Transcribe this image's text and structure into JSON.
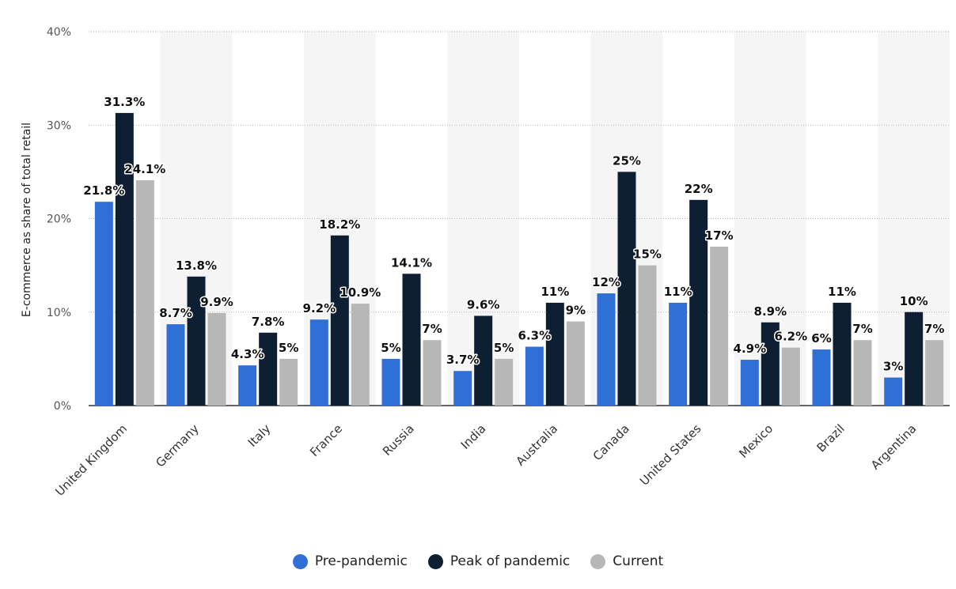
{
  "chart_data": {
    "type": "bar",
    "ylabel": "E-commerce as share of total retail",
    "ylim": [
      0,
      40
    ],
    "yticks": [
      "0%",
      "10%",
      "20%",
      "30%",
      "40%"
    ],
    "grid": true,
    "legend_position": "bottom",
    "categories": [
      "United Kingdom",
      "Germany",
      "Italy",
      "France",
      "Russia",
      "India",
      "Australia",
      "Canada",
      "United States",
      "Mexico",
      "Brazil",
      "Argentina"
    ],
    "series": [
      {
        "name": "Pre-pandemic",
        "color": "#2f6fd6",
        "values": [
          21.8,
          8.7,
          4.3,
          9.2,
          5,
          3.7,
          6.3,
          12,
          11,
          4.9,
          6,
          3
        ],
        "labels": [
          "21.8%",
          "8.7%",
          "4.3%",
          "9.2%",
          "5%",
          "3.7%",
          "6.3%",
          "12%",
          "11%",
          "4.9%",
          "6%",
          "3%"
        ]
      },
      {
        "name": "Peak of pandemic",
        "color": "#0e1f33",
        "values": [
          31.3,
          13.8,
          7.8,
          18.2,
          14.1,
          9.6,
          11,
          25,
          22,
          8.9,
          11,
          10
        ],
        "labels": [
          "31.3%",
          "13.8%",
          "7.8%",
          "18.2%",
          "14.1%",
          "9.6%",
          "11%",
          "25%",
          "22%",
          "8.9%",
          "11%",
          "10%"
        ]
      },
      {
        "name": "Current",
        "color": "#b7b7b7",
        "values": [
          24.1,
          9.9,
          5,
          10.9,
          7,
          5,
          9,
          15,
          17,
          6.2,
          7,
          7
        ],
        "labels": [
          "24.1%",
          "9.9%",
          "5%",
          "10.9%",
          "7%",
          "5%",
          "9%",
          "15%",
          "17%",
          "6.2%",
          "7%",
          "7%"
        ]
      }
    ]
  }
}
